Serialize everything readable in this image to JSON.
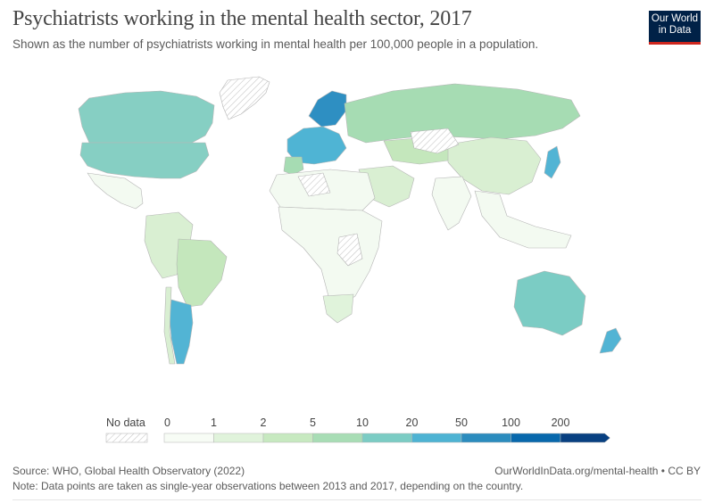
{
  "header": {
    "title": "Psychiatrists working in the mental health sector, 2017",
    "subtitle": "Shown as the number of psychiatrists working in mental health per 100,000 people in a population."
  },
  "logo": {
    "line1": "Our World",
    "line2": "in Data",
    "bg": "#002147",
    "accent": "#ce261e"
  },
  "legend": {
    "no_data_label": "No data",
    "ticks": [
      "0",
      "1",
      "2",
      "5",
      "10",
      "20",
      "50",
      "100",
      "200"
    ],
    "colors": [
      "#f7fcf5",
      "#e0f3db",
      "#c7e9c0",
      "#a8ddb5",
      "#7bccc4",
      "#4eb3d3",
      "#2b8cbe",
      "#0868ac",
      "#084081"
    ]
  },
  "footer": {
    "source": "Source: WHO, Global Health Observatory (2022)",
    "note": "Note: Data points are taken as single-year observations between 2013 and 2017, depending on the country.",
    "url": "OurWorldInData.org/mental-health • CC BY"
  }
}
